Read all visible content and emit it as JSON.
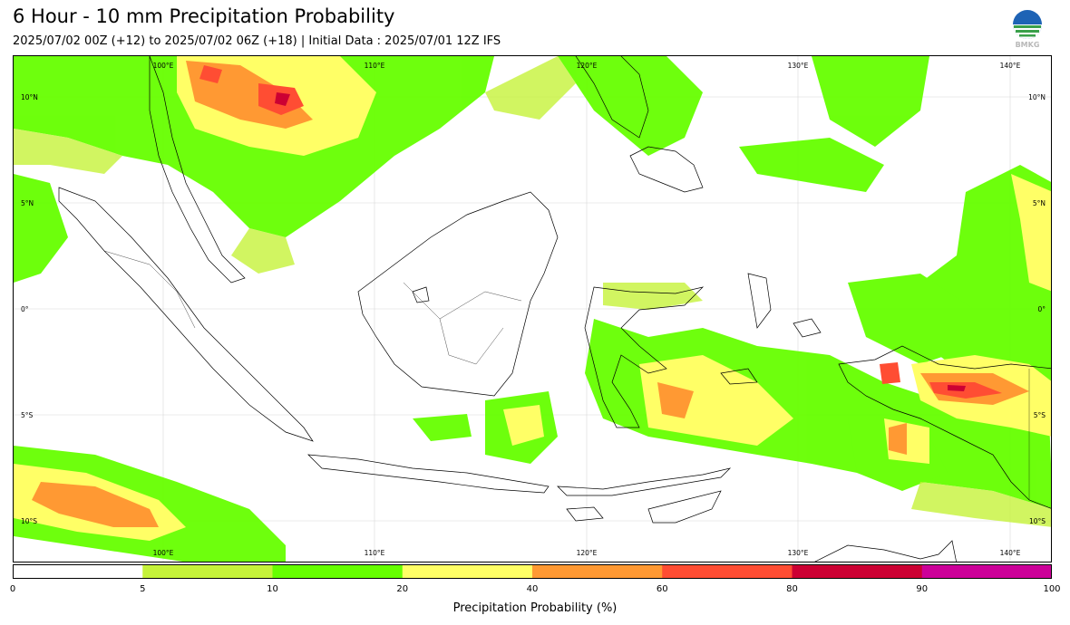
{
  "title": "6 Hour - 10 mm Precipitation Probability",
  "subtitle": "2025/07/02 00Z (+12) to 2025/07/02 06Z (+18) | Initial Data : 2025/07/01 12Z IFS",
  "logo": {
    "icon": "bmkg-logo-icon",
    "text": "BMKG"
  },
  "map": {
    "lon_labels": [
      "100°E",
      "110°E",
      "120°E",
      "130°E",
      "140°E"
    ],
    "lat_labels": [
      "10°N",
      "5°N",
      "0°",
      "5°S",
      "10°S"
    ]
  },
  "colorbar": {
    "label": "Precipitation Probability (%)",
    "ticks": [
      "0",
      "5",
      "10",
      "20",
      "40",
      "60",
      "80",
      "90",
      "100"
    ],
    "colors": [
      "#ffffff",
      "#c5f23a",
      "#66ff00",
      "#ffff66",
      "#ff9933",
      "#ff4d33",
      "#cc0033",
      "#cc0099"
    ]
  }
}
